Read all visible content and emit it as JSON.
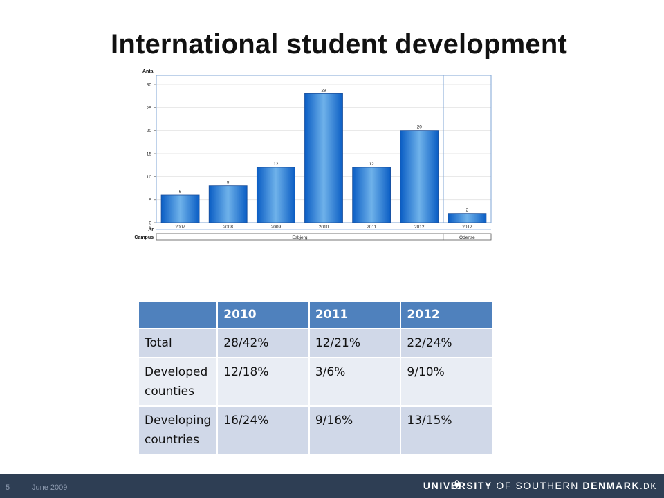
{
  "slide": {
    "title": "International student development"
  },
  "chart_data": {
    "type": "bar",
    "ylabel": "Antal",
    "ylim": [
      0,
      30
    ],
    "yticks": [
      0,
      5,
      10,
      15,
      20,
      25,
      30
    ],
    "x_row_label": "År",
    "campus_row_label": "Campus",
    "categories": [
      "2007",
      "2008",
      "2009",
      "2010",
      "2011",
      "2012",
      "2012"
    ],
    "campus": [
      "Esbjerg",
      "Esbjerg",
      "Esbjerg",
      "Esbjerg",
      "Esbjerg",
      "Esbjerg",
      "Odense"
    ],
    "campus_groups": [
      {
        "name": "Esbjerg",
        "count": 6
      },
      {
        "name": "Odense",
        "count": 1
      }
    ],
    "values": [
      6,
      8,
      12,
      28,
      12,
      20,
      2
    ],
    "data_labels": [
      "6",
      "8",
      "12",
      "28",
      "12",
      "20",
      "2"
    ],
    "grid": true,
    "colors": {
      "bar_light": "#6fb2ea",
      "bar_dark": "#0a5dc4",
      "frame": "#7fa5d6"
    }
  },
  "table": {
    "headers": [
      "",
      "2010",
      "2011",
      "2012"
    ],
    "rows": [
      {
        "label": "Total",
        "values": [
          "28/42%",
          "12/21%",
          "22/24%"
        ]
      },
      {
        "label": "Developed counties",
        "values": [
          "12/18%",
          "3/6%",
          "9/10%"
        ]
      },
      {
        "label": "Developing countries",
        "values": [
          "16/24%",
          "9/16%",
          "13/15%"
        ]
      }
    ]
  },
  "footer": {
    "page_number": "5",
    "date": "June 2009",
    "brand_lead": "UNIVERSITY",
    "brand_mid": "OF SOUTHERN",
    "brand_tail": "DENMARK",
    "brand_domain": ".DK",
    "colors": {
      "background": "#2e3e54"
    }
  }
}
